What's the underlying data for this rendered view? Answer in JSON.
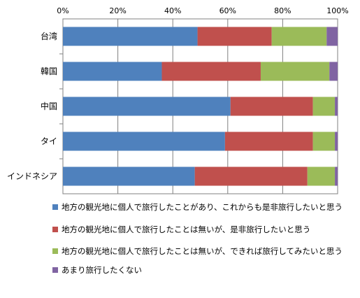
{
  "chart_data": {
    "type": "bar",
    "orientation": "horizontal",
    "stacked": "percent",
    "x_ticks": [
      "0%",
      "20%",
      "40%",
      "60%",
      "80%",
      "100%"
    ],
    "xlim": [
      0,
      100
    ],
    "grid": true,
    "legend_position": "bottom",
    "categories": [
      "台湾",
      "韓国",
      "中国",
      "タイ",
      "インドネシア"
    ],
    "series": [
      {
        "name": "地方の観光地に個人で旅行したことがあり、これからも是非旅行したいと思う",
        "color": "#4f81bd",
        "values": [
          49,
          36,
          61,
          59,
          48
        ]
      },
      {
        "name": "地方の観光地に個人で旅行したことは無いが、是非旅行したいと思う",
        "color": "#c0504d",
        "values": [
          27,
          36,
          30,
          32,
          41
        ]
      },
      {
        "name": "地方の観光地に個人で旅行したことは無いが、できれば旅行してみたいと思う",
        "color": "#9bbb59",
        "values": [
          20,
          25,
          8,
          8,
          10
        ]
      },
      {
        "name": "あまり旅行したくない",
        "color": "#8064a2",
        "values": [
          4,
          3,
          1,
          1,
          1
        ]
      }
    ]
  }
}
